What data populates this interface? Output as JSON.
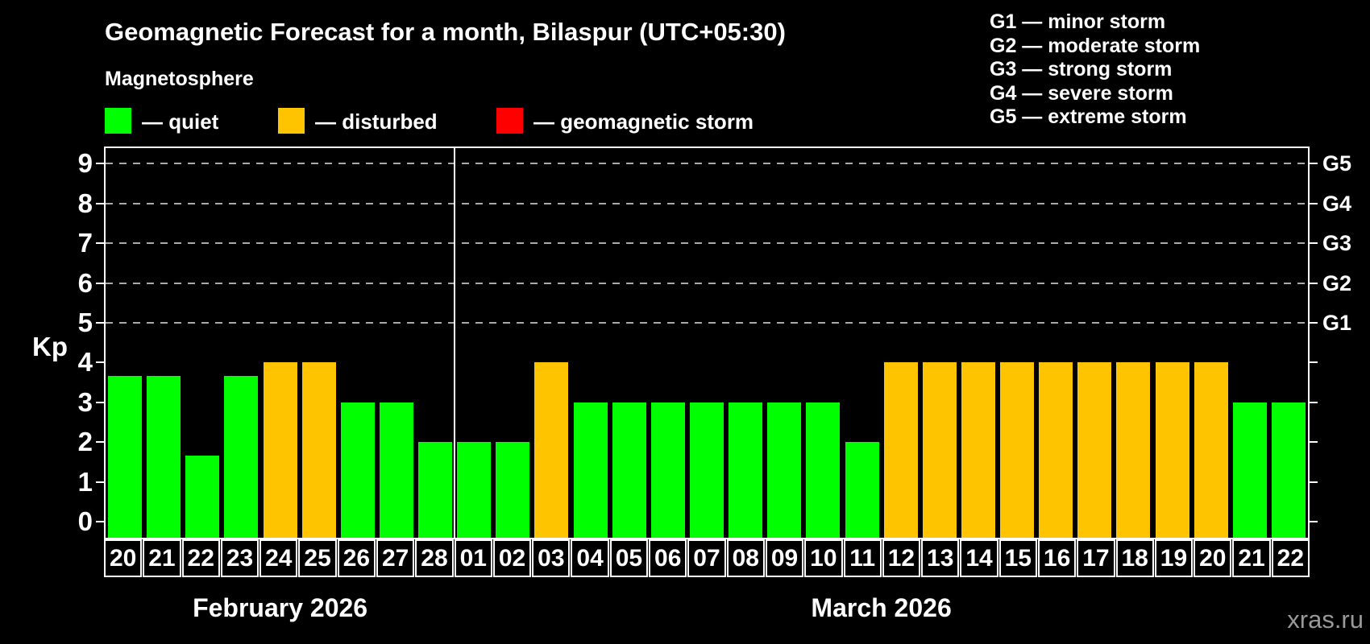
{
  "header": {
    "title": "Geomagnetic Forecast for a month, Bilaspur (UTC+05:30)",
    "subtitle": "Magnetosphere"
  },
  "legend": {
    "quiet": {
      "label": "— quiet",
      "color": "#00ff00"
    },
    "disturbed": {
      "label": "— disturbed",
      "color": "#ffc400"
    },
    "storm": {
      "label": "— geomagnetic storm",
      "color": "#ff0000"
    }
  },
  "g_legend": [
    "G1 — minor storm",
    "G2 — moderate storm",
    "G3 — strong storm",
    "G4 — severe storm",
    "G5 — extreme storm"
  ],
  "watermark": "xras.ru",
  "chart_data": {
    "type": "bar",
    "ylabel": "Kp",
    "ylim": [
      0,
      9
    ],
    "y_ticks": [
      0,
      1,
      2,
      3,
      4,
      5,
      6,
      7,
      8,
      9
    ],
    "gridlines_at": [
      5,
      6,
      7,
      8,
      9
    ],
    "right_axis": [
      {
        "value": 5,
        "label": "G1"
      },
      {
        "value": 6,
        "label": "G2"
      },
      {
        "value": 7,
        "label": "G3"
      },
      {
        "value": 8,
        "label": "G4"
      },
      {
        "value": 9,
        "label": "G5"
      }
    ],
    "status_colors": {
      "quiet": "#00ff00",
      "disturbed": "#ffc400",
      "storm": "#ff0000"
    },
    "months": [
      {
        "label": "February 2026",
        "days": [
          {
            "date": "20",
            "kp": 3.67,
            "status": "quiet"
          },
          {
            "date": "21",
            "kp": 3.67,
            "status": "quiet"
          },
          {
            "date": "22",
            "kp": 1.67,
            "status": "quiet"
          },
          {
            "date": "23",
            "kp": 3.67,
            "status": "quiet"
          },
          {
            "date": "24",
            "kp": 4,
            "status": "disturbed"
          },
          {
            "date": "25",
            "kp": 4,
            "status": "disturbed"
          },
          {
            "date": "26",
            "kp": 3,
            "status": "quiet"
          },
          {
            "date": "27",
            "kp": 3,
            "status": "quiet"
          },
          {
            "date": "28",
            "kp": 2,
            "status": "quiet"
          }
        ]
      },
      {
        "label": "March 2026",
        "days": [
          {
            "date": "01",
            "kp": 2,
            "status": "quiet"
          },
          {
            "date": "02",
            "kp": 2,
            "status": "quiet"
          },
          {
            "date": "03",
            "kp": 4,
            "status": "disturbed"
          },
          {
            "date": "04",
            "kp": 3,
            "status": "quiet"
          },
          {
            "date": "05",
            "kp": 3,
            "status": "quiet"
          },
          {
            "date": "06",
            "kp": 3,
            "status": "quiet"
          },
          {
            "date": "07",
            "kp": 3,
            "status": "quiet"
          },
          {
            "date": "08",
            "kp": 3,
            "status": "quiet"
          },
          {
            "date": "09",
            "kp": 3,
            "status": "quiet"
          },
          {
            "date": "10",
            "kp": 3,
            "status": "quiet"
          },
          {
            "date": "11",
            "kp": 2,
            "status": "quiet"
          },
          {
            "date": "12",
            "kp": 4,
            "status": "disturbed"
          },
          {
            "date": "13",
            "kp": 4,
            "status": "disturbed"
          },
          {
            "date": "14",
            "kp": 4,
            "status": "disturbed"
          },
          {
            "date": "15",
            "kp": 4,
            "status": "disturbed"
          },
          {
            "date": "16",
            "kp": 4,
            "status": "disturbed"
          },
          {
            "date": "17",
            "kp": 4,
            "status": "disturbed"
          },
          {
            "date": "18",
            "kp": 4,
            "status": "disturbed"
          },
          {
            "date": "19",
            "kp": 4,
            "status": "disturbed"
          },
          {
            "date": "20",
            "kp": 4,
            "status": "disturbed"
          },
          {
            "date": "21",
            "kp": 3,
            "status": "quiet"
          },
          {
            "date": "22",
            "kp": 3,
            "status": "quiet"
          }
        ]
      }
    ]
  }
}
